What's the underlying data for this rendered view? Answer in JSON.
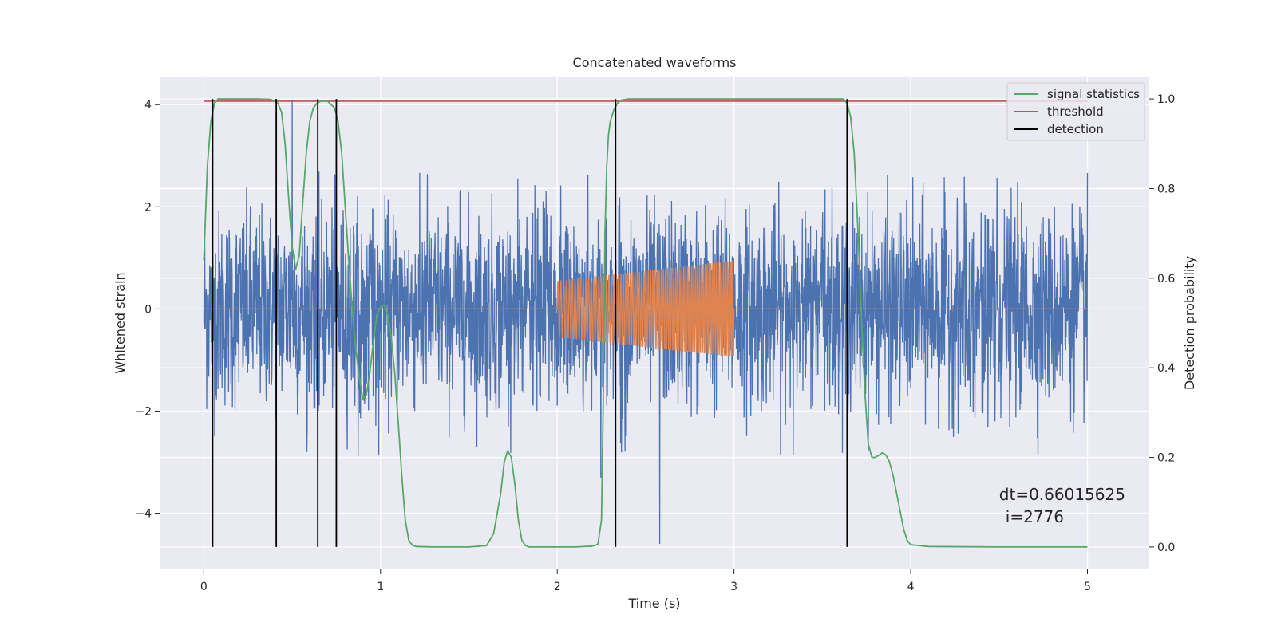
{
  "chart_data": {
    "type": "line",
    "title": "Concatenated waveforms",
    "xlabel": "Time (s)",
    "ylabel_left": "Whitened strain",
    "ylabel_right": "Detection probability",
    "xlim": [
      -0.25,
      5.35
    ],
    "ylim_left": [
      -5.1,
      4.55
    ],
    "ylim_right": [
      -0.05,
      1.05
    ],
    "x_ticks": [
      0,
      1,
      2,
      3,
      4,
      5
    ],
    "x_tick_labels": [
      "0",
      "1",
      "2",
      "3",
      "4",
      "5"
    ],
    "y_left_ticks": [
      4,
      2,
      0,
      -2,
      -4
    ],
    "y_left_tick_labels": [
      "4",
      "2",
      "0",
      "−2",
      "−4"
    ],
    "y_right_ticks": [
      1.0,
      0.8,
      0.6,
      0.4,
      0.2,
      0.0
    ],
    "y_right_tick_labels": [
      "1.0",
      "0.8",
      "0.6",
      "0.4",
      "0.2",
      "0.0"
    ],
    "grid": true,
    "legend_position": "top-right",
    "legend": [
      {
        "label": "signal statistics",
        "color": "#55a868"
      },
      {
        "label": "threshold",
        "color": "#c44e52"
      },
      {
        "label": "detection",
        "color": "#000000"
      }
    ],
    "colors": {
      "strain": "#4c72b0",
      "waveform": "#dd8452",
      "statistics": "#55a868",
      "threshold": "#c44e52",
      "detection": "#000000",
      "background": "#eaeaf2"
    },
    "strain": {
      "x_range": [
        0,
        5
      ],
      "axis": "left",
      "noise_envelope": [
        -2.9,
        2.7
      ],
      "peak_max": 4.1,
      "peak_min": -4.6
    },
    "waveform": {
      "x_range": [
        0,
        5
      ],
      "axis": "left",
      "chirp_start": 2.0,
      "chirp_end": 3.0,
      "amplitude_start": 0.55,
      "amplitude_end": 0.95
    },
    "threshold": {
      "value": 0.995,
      "x_range": [
        0,
        5
      ],
      "axis": "right"
    },
    "detections": [
      0.05,
      0.41,
      0.645,
      0.75,
      2.33,
      3.64
    ],
    "signal_statistics": {
      "axis": "right",
      "x": [
        0.0,
        0.02,
        0.04,
        0.06,
        0.08,
        0.1,
        0.2,
        0.3,
        0.38,
        0.42,
        0.44,
        0.46,
        0.48,
        0.5,
        0.52,
        0.54,
        0.56,
        0.58,
        0.6,
        0.62,
        0.64,
        0.66,
        0.7,
        0.74,
        0.76,
        0.78,
        0.8,
        0.82,
        0.84,
        0.86,
        0.88,
        0.9,
        0.92,
        0.94,
        0.96,
        0.98,
        1.0,
        1.02,
        1.04,
        1.06,
        1.08,
        1.1,
        1.12,
        1.14,
        1.16,
        1.18,
        1.2,
        1.3,
        1.5,
        1.6,
        1.64,
        1.68,
        1.7,
        1.72,
        1.74,
        1.76,
        1.78,
        1.8,
        1.82,
        1.84,
        1.88,
        1.95,
        2.1,
        2.2,
        2.23,
        2.25,
        2.26,
        2.27,
        2.28,
        2.29,
        2.3,
        2.32,
        2.34,
        2.36,
        2.4,
        2.5,
        3.0,
        3.5,
        3.62,
        3.64,
        3.66,
        3.68,
        3.7,
        3.72,
        3.74,
        3.76,
        3.78,
        3.8,
        3.82,
        3.84,
        3.86,
        3.88,
        3.9,
        3.92,
        3.94,
        3.96,
        3.98,
        4.0,
        4.1,
        4.5,
        5.0
      ],
      "y": [
        0.64,
        0.85,
        0.95,
        0.99,
        1.0,
        1.0,
        1.0,
        1.0,
        0.999,
        0.99,
        0.97,
        0.9,
        0.78,
        0.67,
        0.62,
        0.65,
        0.77,
        0.88,
        0.95,
        0.98,
        0.99,
        0.995,
        0.995,
        0.98,
        0.95,
        0.88,
        0.76,
        0.64,
        0.53,
        0.44,
        0.38,
        0.33,
        0.34,
        0.39,
        0.46,
        0.52,
        0.535,
        0.54,
        0.52,
        0.47,
        0.39,
        0.28,
        0.16,
        0.06,
        0.015,
        0.004,
        0.001,
        0.0,
        0.0,
        0.003,
        0.03,
        0.12,
        0.19,
        0.215,
        0.2,
        0.14,
        0.06,
        0.015,
        0.003,
        0.0,
        0.0,
        0.0,
        0.0,
        0.002,
        0.006,
        0.06,
        0.32,
        0.7,
        0.85,
        0.92,
        0.95,
        0.975,
        0.99,
        0.997,
        1.0,
        1.0,
        1.0,
        1.0,
        1.0,
        0.99,
        0.96,
        0.88,
        0.72,
        0.52,
        0.35,
        0.23,
        0.2,
        0.2,
        0.205,
        0.21,
        0.205,
        0.19,
        0.16,
        0.12,
        0.08,
        0.04,
        0.015,
        0.005,
        0.001,
        0.0,
        0.0
      ]
    },
    "annotation": {
      "line1": "dt=0.66015625",
      "line2": "i=2776",
      "x": 4.5,
      "y_right": 0.105
    }
  }
}
